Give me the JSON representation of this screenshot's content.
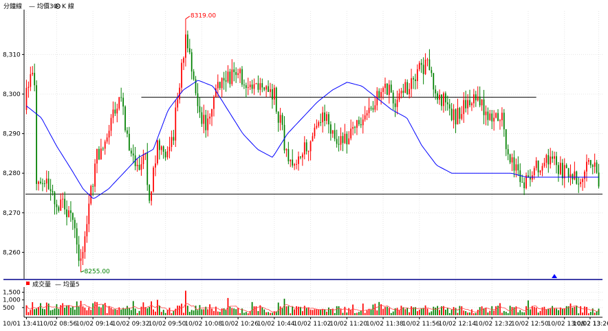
{
  "header": {
    "chart_label": "分鐘線",
    "legend_ma": "— 均價30",
    "legend_kline": "K 線",
    "settings_icon": "gear-icon"
  },
  "volume_header": {
    "legend_volume": "成交量",
    "legend_ma": "— 均量5"
  },
  "colors": {
    "up": "#ff0000",
    "down": "#008000",
    "ma_line": "#0000ff",
    "separator": "#00008b",
    "marker": "#0000ff",
    "high_label": "#ff0000",
    "low_label": "#008000"
  },
  "chart_data": [
    {
      "type": "candlestick",
      "y_ticks": [
        "8,260",
        "8,270",
        "8,280",
        "8,290",
        "8,300",
        "8,310"
      ],
      "y_tick_values": [
        8260,
        8270,
        8280,
        8290,
        8300,
        8310
      ],
      "ylim": [
        8254,
        8321
      ],
      "high_value": 8319,
      "high_label": "8319.00",
      "low_value": 8255,
      "low_label": "8255.00",
      "high_index": 79,
      "low_index": 27,
      "candle_count": 285,
      "support_level": 8274.7,
      "resistance_level": 8299.2,
      "resistance_start_index": 57,
      "resistance_end_index": 253,
      "marker_index": 262,
      "ma_anchors": [
        [
          0,
          8297
        ],
        [
          10,
          8294
        ],
        [
          20,
          8287
        ],
        [
          30,
          8281
        ],
        [
          38,
          8276
        ],
        [
          45,
          8273.5
        ],
        [
          55,
          8276
        ],
        [
          65,
          8280
        ],
        [
          75,
          8284
        ],
        [
          85,
          8286
        ],
        [
          95,
          8296
        ],
        [
          105,
          8301
        ],
        [
          115,
          8303.5
        ],
        [
          125,
          8302
        ],
        [
          135,
          8296
        ],
        [
          145,
          8290
        ],
        [
          155,
          8286
        ],
        [
          165,
          8284
        ],
        [
          175,
          8290
        ],
        [
          185,
          8294
        ],
        [
          195,
          8298
        ],
        [
          205,
          8301
        ],
        [
          215,
          8303
        ],
        [
          225,
          8302
        ],
        [
          235,
          8299
        ],
        [
          245,
          8296
        ],
        [
          255,
          8294
        ],
        [
          265,
          8287
        ],
        [
          275,
          8282
        ],
        [
          285,
          8280
        ],
        [
          295,
          8280
        ],
        [
          305,
          8280
        ],
        [
          315,
          8280
        ],
        [
          325,
          8280
        ],
        [
          335,
          8279
        ],
        [
          345,
          8279
        ],
        [
          355,
          8279
        ],
        [
          365,
          8279
        ],
        [
          375,
          8279
        ],
        [
          385,
          8279
        ]
      ],
      "price_anchors": [
        [
          0,
          8296
        ],
        [
          3,
          8307
        ],
        [
          5,
          8300
        ],
        [
          6,
          8278
        ],
        [
          12,
          8278
        ],
        [
          16,
          8273
        ],
        [
          20,
          8272
        ],
        [
          24,
          8268
        ],
        [
          27,
          8256
        ],
        [
          30,
          8262
        ],
        [
          32,
          8272
        ],
        [
          36,
          8285
        ],
        [
          40,
          8287
        ],
        [
          44,
          8296
        ],
        [
          48,
          8299
        ],
        [
          52,
          8287
        ],
        [
          56,
          8282
        ],
        [
          60,
          8284
        ],
        [
          62,
          8273
        ],
        [
          66,
          8288
        ],
        [
          70,
          8286
        ],
        [
          74,
          8290
        ],
        [
          78,
          8308
        ],
        [
          80,
          8313
        ],
        [
          84,
          8305
        ],
        [
          88,
          8293
        ],
        [
          92,
          8293
        ],
        [
          96,
          8302
        ],
        [
          100,
          8303
        ],
        [
          104,
          8306
        ],
        [
          108,
          8304
        ],
        [
          112,
          8302
        ],
        [
          116,
          8303
        ],
        [
          120,
          8302
        ],
        [
          124,
          8300
        ],
        [
          128,
          8290
        ],
        [
          132,
          8282
        ],
        [
          136,
          8282
        ],
        [
          140,
          8287
        ],
        [
          144,
          8290
        ],
        [
          148,
          8294
        ],
        [
          152,
          8292
        ],
        [
          156,
          8287
        ],
        [
          160,
          8288
        ],
        [
          164,
          8291
        ],
        [
          168,
          8292
        ],
        [
          172,
          8297
        ],
        [
          176,
          8300
        ],
        [
          180,
          8301
        ],
        [
          184,
          8298
        ],
        [
          188,
          8300
        ],
        [
          192,
          8304
        ],
        [
          196,
          8306
        ],
        [
          200,
          8307
        ],
        [
          204,
          8300
        ],
        [
          208,
          8298
        ],
        [
          212,
          8294
        ],
        [
          216,
          8295
        ],
        [
          220,
          8298
        ],
        [
          224,
          8299
        ],
        [
          228,
          8296
        ],
        [
          232,
          8295
        ],
        [
          236,
          8295
        ],
        [
          238,
          8292
        ],
        [
          240,
          8284
        ],
        [
          244,
          8282
        ],
        [
          246,
          8276
        ],
        [
          250,
          8278
        ],
        [
          254,
          8282
        ],
        [
          258,
          8283
        ],
        [
          262,
          8285
        ],
        [
          266,
          8281
        ],
        [
          270,
          8279
        ],
        [
          274,
          8278
        ],
        [
          278,
          8281
        ],
        [
          282,
          8282
        ],
        [
          285,
          8278
        ]
      ]
    },
    {
      "type": "bar",
      "series_name": "成交量",
      "y_ticks": [
        "500",
        "1,000",
        "1,500"
      ],
      "y_tick_values": [
        500,
        1000,
        1500
      ],
      "ylim": [
        0,
        1750
      ],
      "spike_index": 79,
      "spike_value": 1600
    }
  ],
  "x_axis": {
    "ticks": [
      "10/01 13:41",
      "10/02 08:56",
      "10/02 09:14",
      "10/02 09:32",
      "10/02 09:50",
      "10/02 10:08",
      "10/02 10:26",
      "10/02 10:44",
      "10/02 11:02",
      "10/02 11:20",
      "10/02 11:38",
      "10/02 11:56",
      "10/02 12:14",
      "10/02 12:32",
      "10/02 12:50",
      "10/02 13:08",
      "10/02 13:26",
      "10/02 13"
    ],
    "tick_indices": [
      0,
      15,
      33,
      51,
      69,
      87,
      105,
      123,
      141,
      159,
      177,
      195,
      213,
      231,
      249,
      267,
      285,
      303
    ]
  }
}
